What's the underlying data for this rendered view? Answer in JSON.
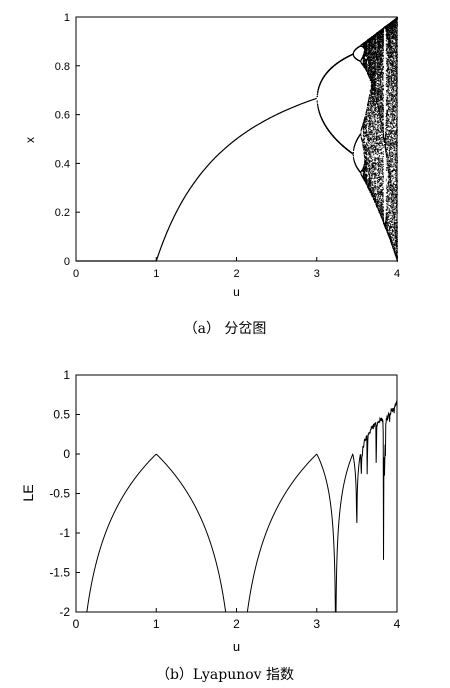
{
  "chart_data": [
    {
      "type": "scatter",
      "subplot": "a",
      "caption": "（a） 分岔图",
      "xlabel": "u",
      "ylabel": "x",
      "xlim": [
        0,
        4
      ],
      "ylim": [
        0,
        1
      ],
      "xticks": [
        "0",
        "1",
        "2",
        "3",
        "4"
      ],
      "yticks": [
        "0",
        "0.2",
        "0.4",
        "0.6",
        "0.8",
        "1"
      ],
      "grid": false,
      "description_points": {
        "x": [
          0,
          1,
          1.5,
          2,
          2.5,
          3,
          3.2,
          3.45,
          3.56,
          3.6,
          3.8,
          4
        ],
        "stable_branch_y": [
          0,
          0,
          0.333,
          0.5,
          0.6,
          0.667
        ],
        "period2_upper_y": [
          0.667,
          0.8,
          0.852
        ],
        "period2_lower_y": [
          0.667,
          0.513,
          0.44
        ]
      },
      "color": "#000000"
    },
    {
      "type": "line",
      "subplot": "b",
      "caption": "（b）Lyapunov 指数",
      "xlabel": "u",
      "ylabel": "LE",
      "xlim": [
        0,
        4
      ],
      "ylim": [
        -2,
        1
      ],
      "xticks": [
        "0",
        "1",
        "2",
        "3",
        "4"
      ],
      "yticks": [
        "-2",
        "-1.5",
        "-1",
        "-0.5",
        "0",
        "0.5",
        "1"
      ],
      "grid": false,
      "x": [
        0.14,
        0.3,
        0.5,
        0.7,
        0.9,
        1.0,
        1.1,
        1.3,
        1.5,
        1.7,
        1.87,
        2.13,
        2.3,
        2.5,
        2.7,
        2.9,
        3.0,
        3.1,
        3.2,
        3.236,
        3.3,
        3.4,
        3.45,
        3.5,
        3.54,
        3.57,
        3.6,
        3.63,
        3.68,
        3.74,
        3.8,
        3.83,
        3.86,
        3.9,
        3.95,
        4.0
      ],
      "y": [
        -2.0,
        -1.2,
        -0.69,
        -0.36,
        -0.105,
        -0.03,
        -0.095,
        -0.26,
        -0.69,
        -1.2,
        -2.0,
        -2.0,
        -1.2,
        -0.69,
        -0.36,
        -0.105,
        -0.03,
        -0.25,
        -0.8,
        -2.0,
        -0.7,
        -0.25,
        -0.05,
        -0.6,
        -0.1,
        -0.02,
        0.2,
        0.05,
        0.3,
        -0.5,
        0.4,
        -1.2,
        0.45,
        0.3,
        0.55,
        0.7
      ],
      "color": "#000000"
    }
  ]
}
